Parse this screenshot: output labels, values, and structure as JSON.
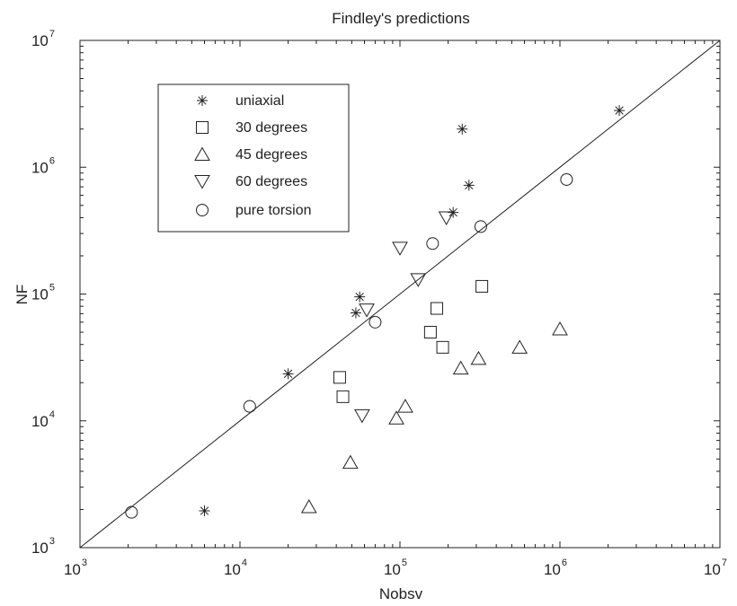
{
  "chart_data": {
    "type": "scatter",
    "title": "Findley's predictions",
    "xlabel": "Nobsv",
    "ylabel": "NF",
    "xscale": "log",
    "yscale": "log",
    "xlim": [
      1000,
      10000000
    ],
    "ylim": [
      1000,
      10000000
    ],
    "ticks": [
      {
        "base": "10",
        "exp": "3",
        "value": 1000
      },
      {
        "base": "10",
        "exp": "4",
        "value": 10000
      },
      {
        "base": "10",
        "exp": "5",
        "value": 100000
      },
      {
        "base": "10",
        "exp": "6",
        "value": 1000000
      },
      {
        "base": "10",
        "exp": "7",
        "value": 10000000
      }
    ],
    "grid": false,
    "legend_position": "top-left",
    "reference_line": {
      "x": [
        1000,
        10000000
      ],
      "y": [
        1000,
        10000000
      ]
    },
    "series": [
      {
        "name": "uniaxial",
        "marker": "star",
        "x": [
          6000,
          20000,
          53000,
          56000,
          215000,
          245000,
          270000,
          2350000
        ],
        "y": [
          1950,
          23500,
          71000,
          95000,
          440000,
          2000000,
          720000,
          2800000
        ]
      },
      {
        "name": "30 degrees",
        "marker": "square",
        "x": [
          42000,
          44000,
          155000,
          170000,
          185000,
          325000
        ],
        "y": [
          22000,
          15500,
          50000,
          77000,
          38000,
          115000
        ]
      },
      {
        "name": "45 degrees",
        "marker": "triangle-up",
        "x": [
          27000,
          49000,
          95000,
          108000,
          240000,
          310000,
          560000,
          1000000
        ],
        "y": [
          2100,
          4700,
          10500,
          13000,
          26000,
          31000,
          38000,
          53000
        ]
      },
      {
        "name": "60 degrees",
        "marker": "triangle-down",
        "x": [
          58000,
          62000,
          100000,
          130000,
          195000
        ],
        "y": [
          11000,
          75000,
          230000,
          130000,
          400000
        ]
      },
      {
        "name": "pure torsion",
        "marker": "circle",
        "x": [
          2100,
          11500,
          70000,
          160000,
          320000,
          1100000
        ],
        "y": [
          1900,
          13000,
          60000,
          250000,
          340000,
          800000
        ]
      }
    ]
  }
}
